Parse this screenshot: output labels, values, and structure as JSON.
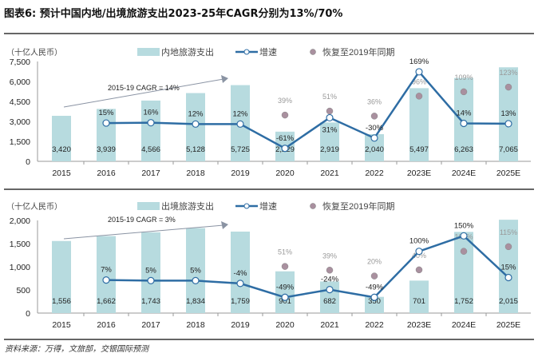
{
  "title": "图表6:  预计中国内地/出境旅游支出2023-25年CAGR分别为13%/70%",
  "source": "资料来源：万得，文旅部，交银国际预测",
  "colors": {
    "bar": "#b7dbdf",
    "line": "#2e6da4",
    "dot": "#a9909f",
    "arrow": "#8a93a3"
  },
  "chart_data": [
    {
      "type": "bar",
      "unit_label": "（十亿人民币）",
      "legend": {
        "bar": "内地旅游支出",
        "line": "增速",
        "dot": "恢复至2019年同期"
      },
      "legend_placement": "top",
      "annotation": "2015-19 CAGR = 14%",
      "categories": [
        "2015",
        "2016",
        "2017",
        "2018",
        "2019",
        "2020",
        "2021",
        "2022",
        "2023E",
        "2024E",
        "2025E"
      ],
      "bar_values": [
        3420,
        3939,
        4566,
        5128,
        5725,
        2229,
        2919,
        2040,
        5497,
        6263,
        7065
      ],
      "bar_labels": [
        "3,420",
        "3,939",
        "4,566",
        "5,128",
        "5,725",
        "2,229",
        "2,919",
        "2,040",
        "5,497",
        "6,263",
        "7,065"
      ],
      "growth_pct": [
        null,
        15,
        16,
        12,
        12,
        -61,
        31,
        -30,
        169,
        14,
        13
      ],
      "recovery_pct": [
        null,
        null,
        null,
        null,
        null,
        39,
        51,
        36,
        96,
        109,
        123
      ],
      "ylim": [
        0,
        7500
      ],
      "yticks": [
        "0",
        "1,500",
        "3,000",
        "4,500",
        "6,000",
        "7,500"
      ],
      "secondary_ylim": [
        -100,
        200
      ]
    },
    {
      "type": "bar",
      "unit_label": "（十亿人民币）",
      "legend": {
        "bar": "出境旅游支出",
        "line": "增速",
        "dot": "恢复至2019年同期"
      },
      "legend_placement": "top",
      "annotation": "2015-19 CAGR = 3%",
      "categories": [
        "2015",
        "2016",
        "2017",
        "2018",
        "2019",
        "2020",
        "2021",
        "2022",
        "2023E",
        "2024E",
        "2025E"
      ],
      "bar_values": [
        1556,
        1662,
        1743,
        1834,
        1759,
        901,
        682,
        350,
        701,
        1752,
        2015
      ],
      "bar_labels": [
        "1,556",
        "1,662",
        "1,743",
        "1,834",
        "1,759",
        "901",
        "682",
        "350",
        "701",
        "1,752",
        "2,015"
      ],
      "growth_pct": [
        null,
        7,
        5,
        5,
        -4,
        -49,
        -24,
        -49,
        100,
        150,
        15
      ],
      "recovery_pct": [
        null,
        null,
        null,
        null,
        null,
        51,
        39,
        20,
        40,
        100,
        115
      ],
      "ylim": [
        0,
        2000
      ],
      "yticks": [
        "0",
        "500",
        "1,000",
        "1,500",
        "2,000"
      ],
      "secondary_ylim": [
        -100,
        200
      ]
    }
  ]
}
